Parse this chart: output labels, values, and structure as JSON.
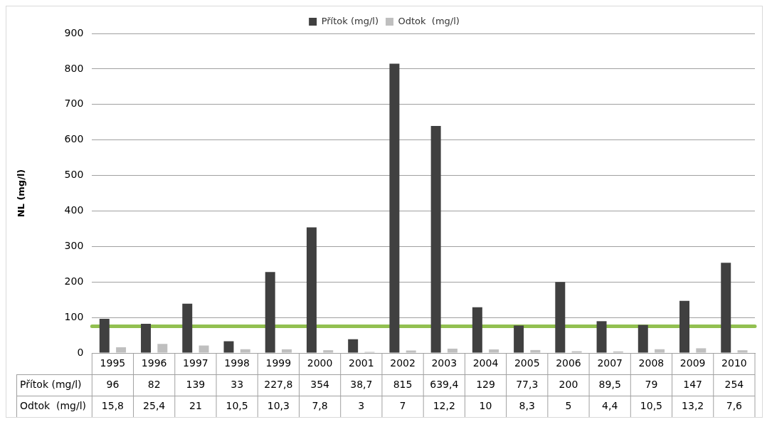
{
  "chart_data": {
    "type": "bar",
    "ylabel": "NL (mg/l)",
    "categories": [
      "1995",
      "1996",
      "1997",
      "1998",
      "1999",
      "2000",
      "2001",
      "2002",
      "2003",
      "2004",
      "2005",
      "2006",
      "2007",
      "2008",
      "2009",
      "2010"
    ],
    "series": [
      {
        "name": "Přítok (mg/l)",
        "color": "#404040",
        "values": [
          96,
          82,
          139,
          33,
          227.8,
          354,
          38.7,
          815,
          639.4,
          129,
          77.3,
          200,
          89.5,
          79,
          147,
          254
        ],
        "value_labels": [
          "96",
          "82",
          "139",
          "33",
          "227,8",
          "354",
          "38,7",
          "815",
          "639,4",
          "129",
          "77,3",
          "200",
          "89,5",
          "79",
          "147",
          "254"
        ]
      },
      {
        "name": "Odtok  (mg/l)",
        "color": "#bfbfbf",
        "values": [
          15.8,
          25.4,
          21,
          10.5,
          10.3,
          7.8,
          3,
          7,
          12.2,
          10,
          8.3,
          5,
          4.4,
          10.5,
          13.2,
          7.6
        ],
        "value_labels": [
          "15,8",
          "25,4",
          "21",
          "10,5",
          "10,3",
          "7,8",
          "3",
          "7",
          "12,2",
          "10",
          "8,3",
          "5",
          "4,4",
          "10,5",
          "13,2",
          "7,6"
        ]
      }
    ],
    "ylim": [
      0,
      900
    ],
    "yticks": [
      0,
      100,
      200,
      300,
      400,
      500,
      600,
      700,
      800,
      900
    ],
    "ref_lines": [
      {
        "axis": "y",
        "value": 75,
        "color": "#92c050"
      }
    ],
    "grid": "y",
    "legend": "top"
  }
}
